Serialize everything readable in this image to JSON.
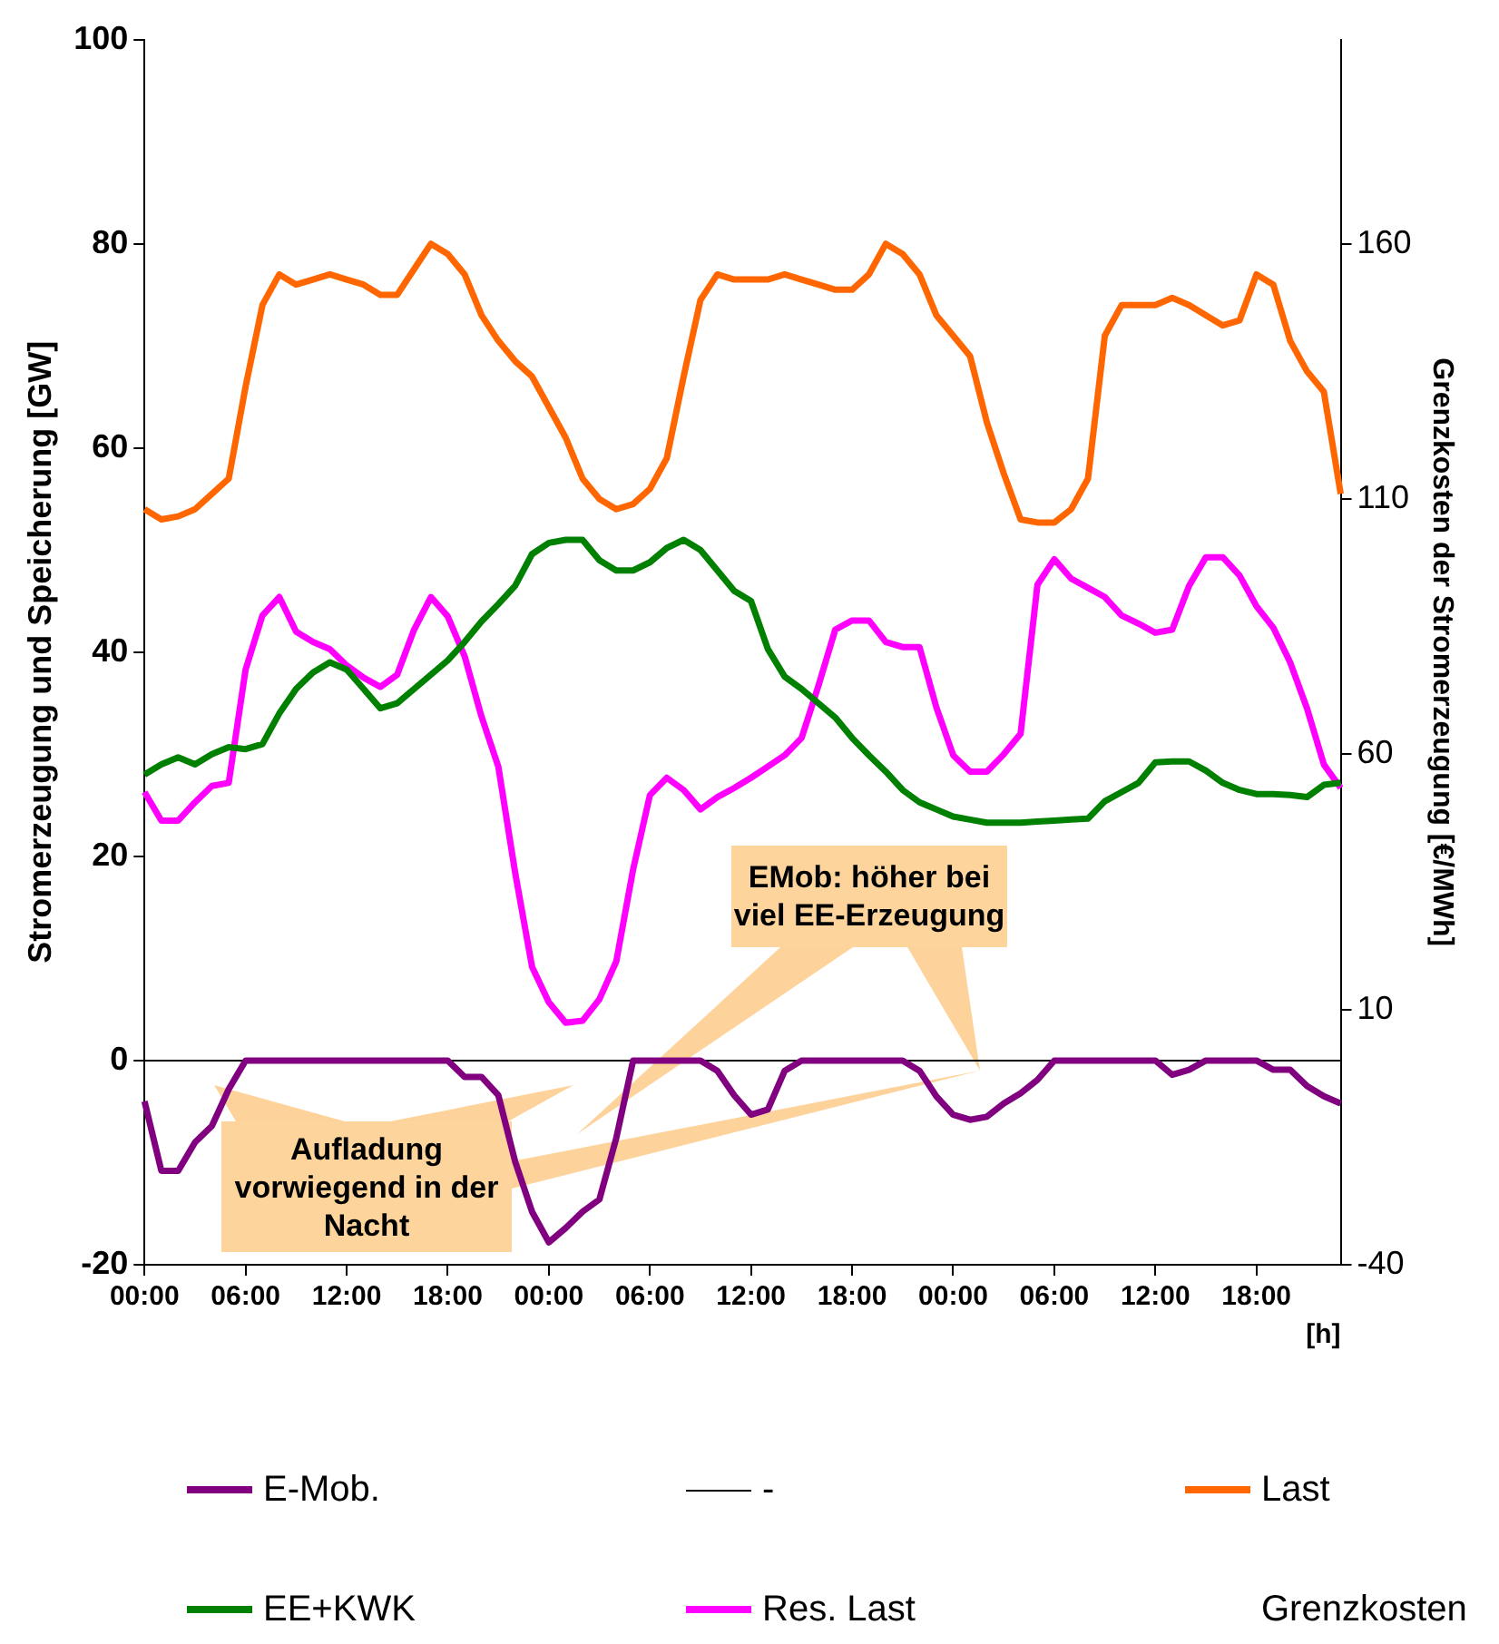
{
  "chart_data": {
    "type": "line",
    "ylabel": "Stromerzeugung und Speicherung [GW]",
    "y2label": "Grenzkosten der Stromerzeugung [€/MWh]",
    "xlabel": "[h]",
    "categories": [
      "00:00",
      null,
      null,
      null,
      null,
      null,
      "06:00",
      null,
      null,
      null,
      null,
      null,
      "12:00",
      null,
      null,
      null,
      null,
      null,
      "18:00",
      null,
      null,
      null,
      null,
      null,
      "00:00",
      null,
      null,
      null,
      null,
      null,
      "06:00",
      null,
      null,
      null,
      null,
      null,
      "12:00",
      null,
      null,
      null,
      null,
      null,
      "18:00",
      null,
      null,
      null,
      null,
      null,
      "00:00",
      null,
      null,
      null,
      null,
      null,
      "06:00",
      null,
      null,
      null,
      null,
      null,
      "12:00",
      null,
      null,
      null,
      null,
      null,
      "18:00",
      null,
      null,
      null,
      null,
      null
    ],
    "ylim": [
      -20,
      100
    ],
    "yticks": [
      -20,
      0,
      20,
      40,
      60,
      80,
      100
    ],
    "y2lim": [
      -40,
      200
    ],
    "y2ticks": [
      -40,
      10,
      60,
      110,
      160
    ],
    "grid": false,
    "legend": "bottom",
    "marker": "none",
    "line_style": "solid",
    "series": [
      {
        "name": "E-Mob.",
        "color": "#800080",
        "values": [
          -4,
          -10.8,
          -10.8,
          -8,
          -6.4,
          -2.8,
          0,
          0,
          0,
          0,
          0,
          0,
          0,
          0,
          0,
          0,
          0,
          0,
          0,
          -1.6,
          -1.6,
          -3.4,
          -9.9,
          -14.8,
          -17.8,
          -16.4,
          -14.8,
          -13.6,
          -7.6,
          0,
          0,
          0,
          0,
          0,
          -1,
          -3.4,
          -5.3,
          -4.8,
          -1,
          0,
          0,
          0,
          0,
          0,
          0,
          0,
          -1,
          -3.5,
          -5.3,
          -5.8,
          -5.5,
          -4.2,
          -3.2,
          -1.9,
          0,
          0,
          0,
          0,
          0,
          0,
          0,
          -1.4,
          -0.9,
          0,
          0,
          0,
          0,
          -0.9,
          -0.9,
          -2.5,
          -3.5,
          -4.2
        ]
      },
      {
        "name": "-",
        "color": "#000000",
        "values": [
          0,
          0,
          0,
          0,
          0,
          0,
          0,
          0,
          0,
          0,
          0,
          0,
          0,
          0,
          0,
          0,
          0,
          0,
          0,
          0,
          0,
          0,
          0,
          0,
          0,
          0,
          0,
          0,
          0,
          0,
          0,
          0,
          0,
          0,
          0,
          0,
          0,
          0,
          0,
          0,
          0,
          0,
          0,
          0,
          0,
          0,
          0,
          0,
          0,
          0,
          0,
          0,
          0,
          0,
          0,
          0,
          0,
          0,
          0,
          0,
          0,
          0,
          0,
          0,
          0,
          0,
          0,
          0,
          0,
          0,
          0,
          0
        ]
      },
      {
        "name": "Last",
        "color": "#ff6600",
        "values": [
          54,
          53,
          53.3,
          54,
          55.5,
          57,
          66,
          74,
          77,
          76,
          76.5,
          77,
          76.5,
          76,
          75,
          75,
          77.5,
          80,
          79,
          77,
          73,
          70.5,
          68.5,
          67,
          64,
          61,
          57,
          55,
          54,
          54.5,
          56,
          59,
          67,
          74.5,
          77,
          76.5,
          76.5,
          76.5,
          77,
          76.5,
          76,
          75.5,
          75.5,
          77,
          80,
          79,
          77,
          73,
          71,
          69,
          62.5,
          57.5,
          53,
          52.7,
          52.7,
          54,
          57,
          71,
          74,
          74,
          74,
          74.7,
          74,
          73,
          72,
          72.5,
          77,
          76,
          70.5,
          67.5,
          65.5,
          55.5
        ]
      },
      {
        "name": "EE+KWK",
        "color": "#008000",
        "values": [
          28,
          29,
          29.7,
          29,
          30,
          30.7,
          30.5,
          31,
          34,
          36.4,
          38,
          39,
          38.3,
          36.4,
          34.5,
          35,
          36.4,
          37.8,
          39.2,
          41,
          43,
          44.7,
          46.5,
          49.6,
          50.7,
          51,
          51,
          49,
          48,
          48,
          48.8,
          50.2,
          51,
          50,
          48,
          46,
          45,
          40.3,
          37.6,
          36.4,
          35,
          33.6,
          31.6,
          29.9,
          28.3,
          26.5,
          25.3,
          24.6,
          23.9,
          23.6,
          23.3,
          23.3,
          23.3,
          23.4,
          23.5,
          23.6,
          23.7,
          25.4,
          26.3,
          27.2,
          29.2,
          29.3,
          29.3,
          28.4,
          27.2,
          26.5,
          26.1,
          26.1,
          26,
          25.8,
          27,
          27.2
        ]
      },
      {
        "name": "Res. Last",
        "color": "#ff00ff",
        "values": [
          26.3,
          23.5,
          23.5,
          25.3,
          26.9,
          27.2,
          38.3,
          43.6,
          45.4,
          42,
          41,
          40.3,
          38.7,
          37.5,
          36.6,
          37.8,
          42.2,
          45.4,
          43.5,
          39.6,
          33.7,
          28.8,
          18.4,
          9.2,
          5.7,
          3.7,
          3.9,
          6,
          9.7,
          18.7,
          26,
          27.7,
          26.5,
          24.6,
          25.8,
          26.7,
          27.7,
          28.8,
          29.9,
          31.6,
          36.7,
          42.2,
          43.1,
          43.1,
          41,
          40.5,
          40.5,
          34.6,
          29.9,
          28.3,
          28.3,
          30,
          32,
          46.6,
          49.1,
          47.2,
          46.3,
          45.4,
          43.6,
          42.8,
          41.9,
          42.2,
          46.5,
          49.3,
          49.3,
          47.5,
          44.5,
          42.4,
          39,
          34.5,
          29,
          26.7
        ]
      },
      {
        "name": "Grenzkosten",
        "values": [
          null,
          null,
          null,
          null,
          null,
          null,
          null,
          null,
          null,
          null,
          null,
          null,
          null,
          null,
          null,
          null,
          null,
          null,
          null,
          null,
          null,
          null,
          null,
          null,
          null,
          null,
          null,
          null,
          null,
          null,
          null,
          null,
          null,
          null,
          null,
          null,
          null,
          null,
          null,
          null,
          null,
          null,
          null,
          null,
          null,
          null,
          null,
          null,
          null,
          null,
          null,
          null,
          null,
          null,
          null,
          null,
          null,
          null,
          null,
          null,
          null,
          null,
          null,
          null,
          null,
          null,
          null,
          null,
          null,
          null,
          null,
          null
        ]
      }
    ],
    "annotations": [
      "Aufladung vorwiegend in der Nacht",
      "EMob: höher bei viel EE-Erzeugung"
    ]
  }
}
